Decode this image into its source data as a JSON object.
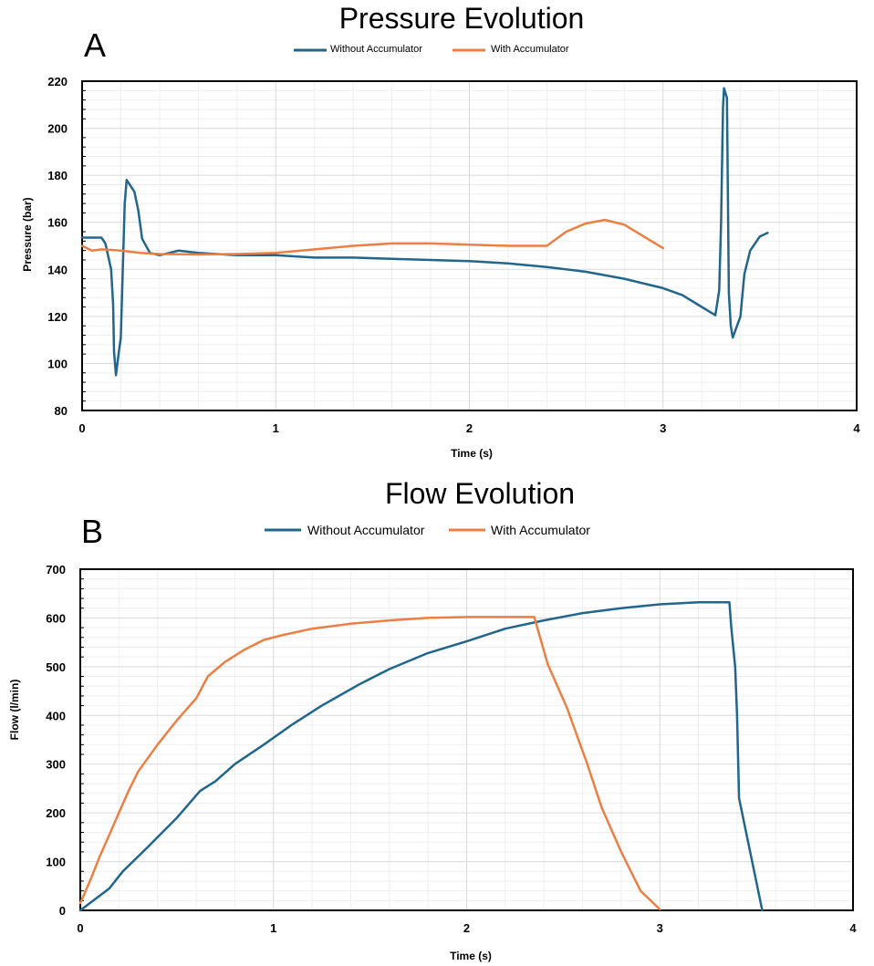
{
  "colors": {
    "without": "#22668b",
    "with": "#ec7f43",
    "grid": "#d9d9d9",
    "minor_grid": "#efefef"
  },
  "chart_data": [
    {
      "type": "line",
      "panel": "A",
      "title": "Pressure Evolution",
      "xlabel": "Time (s)",
      "ylabel": "Pressure (bar)",
      "xlim": [
        0,
        4
      ],
      "ylim": [
        80,
        220
      ],
      "xticks": [
        "0",
        "1",
        "2",
        "3",
        "4"
      ],
      "yticks": [
        "80",
        "100",
        "120",
        "140",
        "160",
        "180",
        "200",
        "220"
      ],
      "grid": true,
      "legend_position": "top",
      "series": [
        {
          "name": "Without Accumulator",
          "points": [
            [
              0,
              153.5
            ],
            [
              0.05,
              153.5
            ],
            [
              0.1,
              153.5
            ],
            [
              0.12,
              151
            ],
            [
              0.15,
              140
            ],
            [
              0.16,
              125
            ],
            [
              0.165,
              105
            ],
            [
              0.175,
              95
            ],
            [
              0.19,
              105
            ],
            [
              0.2,
              111
            ],
            [
              0.21,
              140
            ],
            [
              0.22,
              168
            ],
            [
              0.23,
              178
            ],
            [
              0.27,
              173
            ],
            [
              0.29,
              165
            ],
            [
              0.31,
              153
            ],
            [
              0.35,
              147
            ],
            [
              0.4,
              146
            ],
            [
              0.5,
              148
            ],
            [
              0.6,
              147
            ],
            [
              0.8,
              146
            ],
            [
              1.0,
              146
            ],
            [
              1.2,
              145
            ],
            [
              1.4,
              145
            ],
            [
              1.6,
              144.5
            ],
            [
              1.8,
              144
            ],
            [
              2.0,
              143.5
            ],
            [
              2.2,
              142.5
            ],
            [
              2.4,
              141
            ],
            [
              2.6,
              139
            ],
            [
              2.8,
              136
            ],
            [
              3.0,
              132
            ],
            [
              3.1,
              129
            ],
            [
              3.2,
              124
            ],
            [
              3.27,
              120.5
            ],
            [
              3.29,
              131
            ],
            [
              3.3,
              160
            ],
            [
              3.31,
              209
            ],
            [
              3.315,
              217
            ],
            [
              3.33,
              213
            ],
            [
              3.335,
              170
            ],
            [
              3.34,
              130
            ],
            [
              3.35,
              116
            ],
            [
              3.36,
              111
            ],
            [
              3.4,
              120
            ],
            [
              3.42,
              138
            ],
            [
              3.45,
              148
            ],
            [
              3.5,
              154
            ],
            [
              3.54,
              155.5
            ]
          ]
        },
        {
          "name": "With Accumulator",
          "points": [
            [
              0,
              150
            ],
            [
              0.05,
              148
            ],
            [
              0.1,
              148.5
            ],
            [
              0.2,
              148
            ],
            [
              0.3,
              147
            ],
            [
              0.4,
              146.5
            ],
            [
              0.6,
              146.3
            ],
            [
              0.8,
              146.5
            ],
            [
              1.0,
              147
            ],
            [
              1.2,
              148.5
            ],
            [
              1.4,
              150
            ],
            [
              1.6,
              151
            ],
            [
              1.8,
              151
            ],
            [
              2.0,
              150.5
            ],
            [
              2.2,
              150
            ],
            [
              2.4,
              150
            ],
            [
              2.5,
              156
            ],
            [
              2.6,
              159.5
            ],
            [
              2.7,
              161
            ],
            [
              2.8,
              159
            ],
            [
              2.9,
              154
            ],
            [
              3.0,
              149
            ]
          ]
        }
      ]
    },
    {
      "type": "line",
      "panel": "B",
      "title": "Flow Evolution",
      "xlabel": "Time (s)",
      "ylabel": "Flow (l/min)",
      "xlim": [
        0,
        4
      ],
      "ylim": [
        0,
        700
      ],
      "xticks": [
        "0",
        "1",
        "2",
        "3",
        "4"
      ],
      "yticks": [
        "0",
        "100",
        "200",
        "300",
        "400",
        "500",
        "600",
        "700"
      ],
      "grid": true,
      "legend_position": "top",
      "series": [
        {
          "name": "Without Accumulator",
          "points": [
            [
              0,
              0
            ],
            [
              0.15,
              45
            ],
            [
              0.22,
              80
            ],
            [
              0.35,
              130
            ],
            [
              0.5,
              190
            ],
            [
              0.62,
              245
            ],
            [
              0.7,
              265
            ],
            [
              0.8,
              300
            ],
            [
              0.95,
              340
            ],
            [
              1.1,
              382
            ],
            [
              1.25,
              420
            ],
            [
              1.45,
              465
            ],
            [
              1.6,
              495
            ],
            [
              1.8,
              528
            ],
            [
              2.0,
              552
            ],
            [
              2.2,
              578
            ],
            [
              2.4,
              595
            ],
            [
              2.6,
              610
            ],
            [
              2.8,
              620
            ],
            [
              3.0,
              628
            ],
            [
              3.2,
              632
            ],
            [
              3.25,
              632
            ],
            [
              3.36,
              632
            ],
            [
              3.37,
              580
            ],
            [
              3.39,
              500
            ],
            [
              3.4,
              400
            ],
            [
              3.41,
              230
            ],
            [
              3.53,
              0
            ]
          ]
        },
        {
          "name": "With Accumulator",
          "points": [
            [
              0,
              15
            ],
            [
              0.05,
              60
            ],
            [
              0.1,
              110
            ],
            [
              0.15,
              155
            ],
            [
              0.2,
              200
            ],
            [
              0.25,
              245
            ],
            [
              0.3,
              285
            ],
            [
              0.4,
              340
            ],
            [
              0.5,
              390
            ],
            [
              0.6,
              435
            ],
            [
              0.66,
              480
            ],
            [
              0.75,
              510
            ],
            [
              0.85,
              535
            ],
            [
              0.95,
              555
            ],
            [
              1.05,
              565
            ],
            [
              1.2,
              578
            ],
            [
              1.4,
              588
            ],
            [
              1.6,
              595
            ],
            [
              1.8,
              600
            ],
            [
              2.0,
              602
            ],
            [
              2.2,
              602
            ],
            [
              2.35,
              602
            ],
            [
              2.42,
              505
            ],
            [
              2.52,
              415
            ],
            [
              2.62,
              305
            ],
            [
              2.7,
              210
            ],
            [
              2.8,
              120
            ],
            [
              2.9,
              40
            ],
            [
              3.0,
              2
            ]
          ]
        }
      ]
    }
  ]
}
